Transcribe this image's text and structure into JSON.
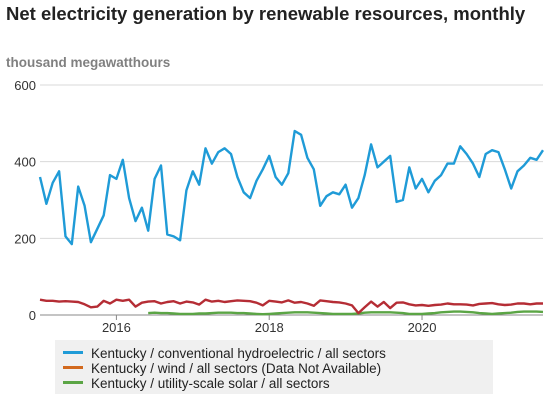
{
  "title": "Net electricity generation by renewable resources, monthly",
  "units": "thousand megawatthours",
  "chart_data": {
    "type": "line",
    "title": "Net electricity generation by renewable resources, monthly",
    "ylabel": "thousand megawatthours",
    "xlabel": "",
    "ylim": [
      0,
      600
    ],
    "y_ticks": [
      0,
      200,
      400,
      600
    ],
    "x_ticks": [
      "2016",
      "2018",
      "2020"
    ],
    "xlim": [
      "2015-01",
      "2021-08"
    ],
    "grid": "horizontal",
    "legend_position": "bottom",
    "x": [
      "2015-01",
      "2015-02",
      "2015-03",
      "2015-04",
      "2015-05",
      "2015-06",
      "2015-07",
      "2015-08",
      "2015-09",
      "2015-10",
      "2015-11",
      "2015-12",
      "2016-01",
      "2016-02",
      "2016-03",
      "2016-04",
      "2016-05",
      "2016-06",
      "2016-07",
      "2016-08",
      "2016-09",
      "2016-10",
      "2016-11",
      "2016-12",
      "2017-01",
      "2017-02",
      "2017-03",
      "2017-04",
      "2017-05",
      "2017-06",
      "2017-07",
      "2017-08",
      "2017-09",
      "2017-10",
      "2017-11",
      "2017-12",
      "2018-01",
      "2018-02",
      "2018-03",
      "2018-04",
      "2018-05",
      "2018-06",
      "2018-07",
      "2018-08",
      "2018-09",
      "2018-10",
      "2018-11",
      "2018-12",
      "2019-01",
      "2019-02",
      "2019-03",
      "2019-04",
      "2019-05",
      "2019-06",
      "2019-07",
      "2019-08",
      "2019-09",
      "2019-10",
      "2019-11",
      "2019-12",
      "2020-01",
      "2020-02",
      "2020-03",
      "2020-04",
      "2020-05",
      "2020-06",
      "2020-07",
      "2020-08",
      "2020-09",
      "2020-10",
      "2020-11",
      "2020-12",
      "2021-01",
      "2021-02",
      "2021-03",
      "2021-04",
      "2021-05",
      "2021-06",
      "2021-07",
      "2021-08"
    ],
    "series": [
      {
        "name": "Kentucky / conventional hydroelectric / all sectors",
        "color": "#1f9bd7",
        "values": [
          360,
          290,
          345,
          375,
          205,
          185,
          335,
          285,
          190,
          225,
          260,
          365,
          355,
          405,
          305,
          245,
          280,
          220,
          355,
          390,
          210,
          205,
          195,
          325,
          375,
          340,
          435,
          395,
          425,
          435,
          420,
          360,
          320,
          305,
          350,
          380,
          415,
          360,
          340,
          370,
          480,
          470,
          410,
          380,
          285,
          310,
          320,
          315,
          340,
          280,
          305,
          365,
          445,
          385,
          400,
          415,
          295,
          300,
          385,
          330,
          355,
          320,
          350,
          365,
          395,
          395,
          440,
          420,
          395,
          360,
          420,
          430,
          425,
          380,
          330,
          375,
          390,
          410,
          405,
          430
        ]
      },
      {
        "name": "Kentucky / wind / all sectors (Data Not Available)",
        "color": "#b52d35",
        "values": [
          40,
          37,
          37,
          35,
          36,
          35,
          34,
          28,
          20,
          22,
          37,
          30,
          40,
          37,
          40,
          22,
          32,
          35,
          36,
          30,
          34,
          36,
          30,
          35,
          33,
          27,
          40,
          35,
          37,
          34,
          36,
          38,
          37,
          36,
          32,
          25,
          37,
          35,
          33,
          38,
          32,
          34,
          30,
          24,
          38,
          36,
          34,
          33,
          30,
          25,
          5,
          20,
          35,
          22,
          34,
          18,
          32,
          33,
          28,
          25,
          26,
          24,
          26,
          27,
          30,
          28,
          28,
          27,
          25,
          29,
          30,
          31,
          28,
          26,
          27,
          30,
          30,
          28,
          30,
          30
        ]
      },
      {
        "name": "Kentucky / utility-scale solar / all sectors",
        "color": "#5ba545",
        "values": [
          null,
          null,
          null,
          null,
          null,
          null,
          null,
          null,
          null,
          null,
          null,
          null,
          null,
          null,
          null,
          null,
          null,
          5,
          6,
          5,
          5,
          4,
          3,
          3,
          3,
          4,
          4,
          5,
          6,
          6,
          6,
          5,
          5,
          4,
          3,
          2,
          3,
          4,
          5,
          6,
          7,
          7,
          7,
          6,
          5,
          4,
          3,
          3,
          3,
          3,
          4,
          6,
          7,
          7,
          7,
          7,
          6,
          5,
          3,
          3,
          3,
          4,
          5,
          7,
          8,
          9,
          9,
          8,
          7,
          5,
          4,
          3,
          4,
          5,
          6,
          8,
          9,
          9,
          9,
          8
        ]
      }
    ]
  }
}
